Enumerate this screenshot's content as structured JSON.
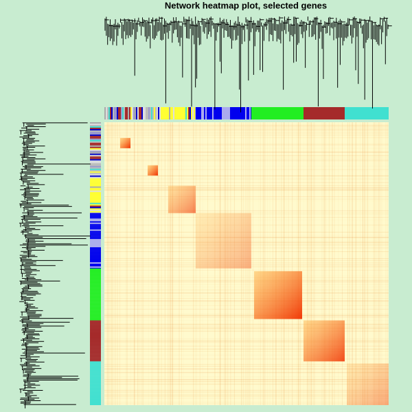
{
  "chart_data": {
    "type": "heatmap",
    "title": "Network heatmap plot, selected genes"
  }
}
